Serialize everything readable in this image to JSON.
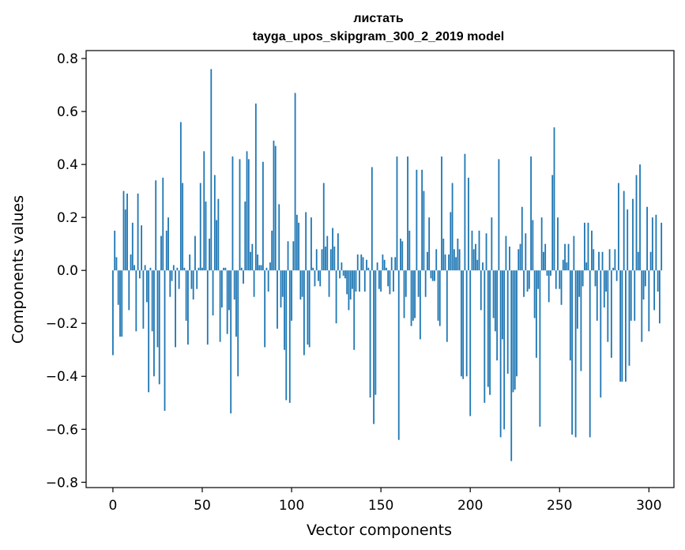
{
  "chart_data": {
    "type": "bar",
    "title": "листать",
    "subtitle": "tayga_upos_skipgram_300_2_2019 model",
    "xlabel": "Vector components",
    "ylabel": "Components values",
    "xlim": [
      -15,
      314
    ],
    "ylim": [
      -0.82,
      0.83
    ],
    "xticks": [
      0,
      50,
      100,
      150,
      200,
      250,
      300
    ],
    "yticks": [
      -0.8,
      -0.6,
      -0.4,
      -0.2,
      0.0,
      0.2,
      0.4,
      0.6,
      0.8
    ],
    "ytick_labels": [
      "−0.8",
      "−0.6",
      "−0.4",
      "−0.2",
      "0.0",
      "0.2",
      "0.4",
      "0.6",
      "0.8"
    ],
    "xtick_labels": [
      "0",
      "50",
      "100",
      "150",
      "200",
      "250",
      "300"
    ],
    "bar_color": "#1f77b4",
    "grid": false,
    "values": [
      -0.32,
      0.15,
      0.05,
      -0.13,
      -0.25,
      -0.25,
      0.3,
      0.23,
      0.29,
      -0.15,
      0.06,
      0.18,
      0.02,
      -0.23,
      0.29,
      -0.03,
      0.17,
      -0.22,
      0.02,
      -0.12,
      -0.46,
      0.01,
      -0.23,
      -0.4,
      0.34,
      -0.29,
      -0.43,
      0.13,
      0.35,
      -0.53,
      0.15,
      0.2,
      -0.1,
      -0.04,
      0.02,
      -0.29,
      0.01,
      -0.07,
      0.56,
      0.33,
      0.01,
      -0.19,
      -0.28,
      0.06,
      -0.07,
      -0.11,
      0.13,
      -0.07,
      0.01,
      0.33,
      0.01,
      0.45,
      0.26,
      -0.28,
      0.12,
      0.76,
      -0.17,
      0.36,
      0.19,
      0.27,
      -0.27,
      -0.14,
      0.01,
      0.01,
      -0.24,
      -0.15,
      -0.54,
      0.43,
      -0.11,
      -0.25,
      -0.4,
      0.42,
      0.01,
      -0.05,
      0.26,
      0.45,
      0.42,
      0.07,
      0.1,
      -0.1,
      0.63,
      0.06,
      0.02,
      0.02,
      0.41,
      -0.29,
      0.01,
      -0.08,
      0.03,
      0.15,
      0.49,
      0.47,
      -0.22,
      0.25,
      -0.14,
      -0.1,
      -0.3,
      -0.49,
      0.11,
      -0.5,
      -0.19,
      0.11,
      0.67,
      0.21,
      0.18,
      -0.11,
      -0.1,
      -0.32,
      0.22,
      -0.28,
      -0.29,
      0.2,
      0.01,
      -0.06,
      0.08,
      -0.04,
      -0.06,
      0.08,
      0.33,
      0.09,
      0.13,
      -0.1,
      0.08,
      0.16,
      0.09,
      -0.2,
      0.14,
      -0.03,
      0.03,
      -0.02,
      -0.03,
      -0.09,
      -0.15,
      -0.11,
      -0.07,
      -0.3,
      -0.08,
      0.06,
      -0.08,
      0.06,
      0.05,
      -0.08,
      0.04,
      0.01,
      -0.48,
      0.39,
      -0.58,
      -0.47,
      0.03,
      -0.07,
      -0.08,
      0.06,
      0.04,
      0.01,
      -0.06,
      -0.09,
      0.05,
      -0.08,
      0.05,
      0.43,
      -0.64,
      0.12,
      0.11,
      -0.18,
      -0.1,
      0.43,
      0.15,
      -0.21,
      -0.19,
      -0.18,
      0.38,
      -0.1,
      -0.26,
      0.38,
      0.3,
      -0.1,
      0.07,
      0.2,
      -0.03,
      -0.04,
      -0.04,
      0.08,
      -0.19,
      -0.21,
      0.43,
      0.12,
      0.06,
      -0.27,
      0.06,
      0.22,
      0.33,
      0.08,
      0.05,
      0.12,
      0.08,
      -0.4,
      -0.41,
      0.44,
      -0.4,
      0.35,
      -0.55,
      0.15,
      0.08,
      0.1,
      0.04,
      0.15,
      -0.15,
      0.03,
      -0.5,
      0.14,
      -0.44,
      -0.47,
      0.2,
      -0.18,
      -0.23,
      -0.34,
      0.42,
      -0.63,
      -0.26,
      -0.6,
      0.13,
      -0.39,
      0.09,
      -0.72,
      -0.46,
      -0.45,
      -0.4,
      0.08,
      0.1,
      0.24,
      -0.1,
      0.14,
      -0.08,
      -0.07,
      0.43,
      0.19,
      -0.18,
      -0.33,
      -0.07,
      -0.59,
      0.2,
      0.07,
      0.1,
      -0.02,
      -0.12,
      -0.02,
      0.36,
      0.54,
      -0.07,
      0.2,
      -0.07,
      -0.13,
      0.04,
      0.1,
      0.03,
      0.1,
      -0.34,
      -0.62,
      0.13,
      -0.63,
      -0.22,
      -0.1,
      -0.38,
      -0.06,
      0.18,
      0.03,
      0.18,
      -0.63,
      0.15,
      0.08,
      -0.06,
      -0.19,
      0.07,
      -0.48,
      0.07,
      -0.14,
      -0.08,
      -0.27,
      0.08,
      -0.33,
      0.01,
      0.08,
      -0.04,
      0.33,
      -0.42,
      -0.42,
      0.3,
      -0.42,
      0.23,
      -0.36,
      -0.19,
      0.27,
      -0.19,
      0.36,
      0.07,
      0.4,
      -0.27,
      -0.11,
      -0.06,
      0.24,
      -0.23,
      0.07,
      0.2,
      -0.15,
      0.21,
      -0.08,
      -0.2,
      0.18
    ]
  }
}
